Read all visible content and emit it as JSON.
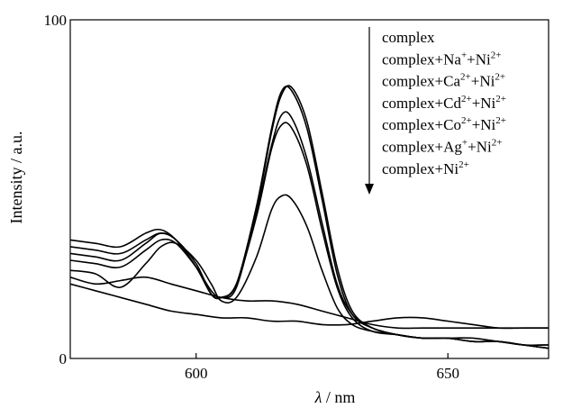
{
  "chart_data": {
    "type": "line",
    "xlabel_symbol": "λ",
    "xlabel_unit": "/ nm",
    "ylabel": "Intensity / a.u.",
    "xlim": [
      575,
      670
    ],
    "ylim": [
      0,
      100
    ],
    "x_ticks": [
      600,
      650
    ],
    "y_ticks": [
      0,
      100
    ],
    "grid": false,
    "legend_position": "top-right",
    "legend_arrow": "down",
    "legend": [
      {
        "base": "complex",
        "ions": []
      },
      {
        "base": "complex",
        "ions": [
          {
            "sym": "Na",
            "sup": "+"
          },
          {
            "sym": "Ni",
            "sup": "2+"
          }
        ]
      },
      {
        "base": "complex",
        "ions": [
          {
            "sym": "Ca",
            "sup": "2+"
          },
          {
            "sym": "Ni",
            "sup": "2+"
          }
        ]
      },
      {
        "base": "complex",
        "ions": [
          {
            "sym": "Cd",
            "sup": "2+"
          },
          {
            "sym": "Ni",
            "sup": "2+"
          }
        ]
      },
      {
        "base": "complex",
        "ions": [
          {
            "sym": "Co",
            "sup": "2+"
          },
          {
            "sym": "Ni",
            "sup": "2+"
          }
        ]
      },
      {
        "base": "complex",
        "ions": [
          {
            "sym": "Ag",
            "sup": "+"
          },
          {
            "sym": "Ni",
            "sup": "2+"
          }
        ]
      },
      {
        "base": "complex",
        "ions": [
          {
            "sym": "Ni",
            "sup": "2+"
          }
        ]
      }
    ],
    "series": [
      {
        "x": [
          575,
          580,
          585,
          590,
          593,
          596,
          600,
          603,
          605,
          608,
          612,
          615,
          617,
          619,
          622,
          625,
          628,
          631,
          635,
          640,
          645,
          650,
          655,
          660,
          665,
          670
        ],
        "y": [
          35,
          34,
          33,
          37,
          38,
          35,
          27,
          19,
          18,
          22,
          45,
          68,
          79,
          79,
          68,
          47,
          25,
          13,
          9,
          7,
          6,
          6,
          5,
          5,
          4,
          4
        ]
      },
      {
        "x": [
          575,
          580,
          585,
          590,
          593,
          596,
          600,
          603,
          605,
          608,
          612,
          615,
          617,
          619,
          622,
          625,
          628,
          631,
          635,
          640,
          645,
          650,
          655,
          660,
          665,
          670
        ],
        "y": [
          33,
          32,
          31,
          35,
          37,
          35,
          28,
          19,
          18,
          21,
          44,
          67,
          78,
          80,
          70,
          49,
          27,
          14,
          9,
          7,
          6,
          6,
          5,
          5,
          4,
          3
        ]
      },
      {
        "x": [
          575,
          580,
          585,
          590,
          593,
          596,
          600,
          603,
          605,
          608,
          612,
          615,
          617,
          619,
          622,
          625,
          628,
          631,
          635,
          640,
          645,
          650,
          655,
          660,
          665,
          670
        ],
        "y": [
          31,
          30,
          29,
          34,
          37,
          35,
          27,
          19,
          18,
          22,
          43,
          63,
          72,
          71,
          59,
          40,
          22,
          13,
          9,
          7,
          6,
          6,
          5,
          5,
          4,
          3
        ]
      },
      {
        "x": [
          575,
          580,
          585,
          590,
          593,
          596,
          600,
          603,
          605,
          608,
          612,
          615,
          617,
          619,
          622,
          625,
          628,
          631,
          635,
          640,
          645,
          650,
          655,
          660,
          665,
          670
        ],
        "y": [
          29,
          28,
          27,
          32,
          35,
          34,
          27,
          20,
          18,
          22,
          42,
          62,
          69,
          68,
          57,
          38,
          21,
          12,
          8,
          7,
          6,
          6,
          5,
          5,
          4,
          3
        ]
      },
      {
        "x": [
          575,
          580,
          585,
          590,
          593,
          596,
          600,
          603,
          605,
          608,
          612,
          615,
          617,
          619,
          622,
          625,
          628,
          631,
          635,
          640,
          645,
          650,
          655,
          660,
          665,
          670
        ],
        "y": [
          26,
          25,
          21,
          28,
          33,
          34,
          29,
          22,
          17,
          18,
          30,
          44,
          48,
          47,
          39,
          26,
          15,
          10,
          8,
          7,
          6,
          6,
          6,
          5,
          4,
          4
        ]
      },
      {
        "x": [
          575,
          580,
          585,
          590,
          595,
          600,
          605,
          610,
          615,
          620,
          625,
          630,
          635,
          640,
          645,
          650,
          655,
          660,
          665,
          670
        ],
        "y": [
          24,
          22,
          23,
          24,
          22,
          20,
          18,
          17,
          17,
          16,
          14,
          12,
          10,
          9,
          9,
          9,
          9,
          9,
          9,
          9
        ]
      },
      {
        "x": [
          575,
          580,
          585,
          590,
          595,
          600,
          605,
          610,
          615,
          620,
          625,
          630,
          635,
          640,
          645,
          650,
          655,
          660,
          665,
          670
        ],
        "y": [
          22,
          20,
          18,
          16,
          14,
          13,
          12,
          12,
          11,
          11,
          10,
          10,
          11,
          12,
          12,
          11,
          10,
          9,
          9,
          9
        ]
      }
    ]
  }
}
